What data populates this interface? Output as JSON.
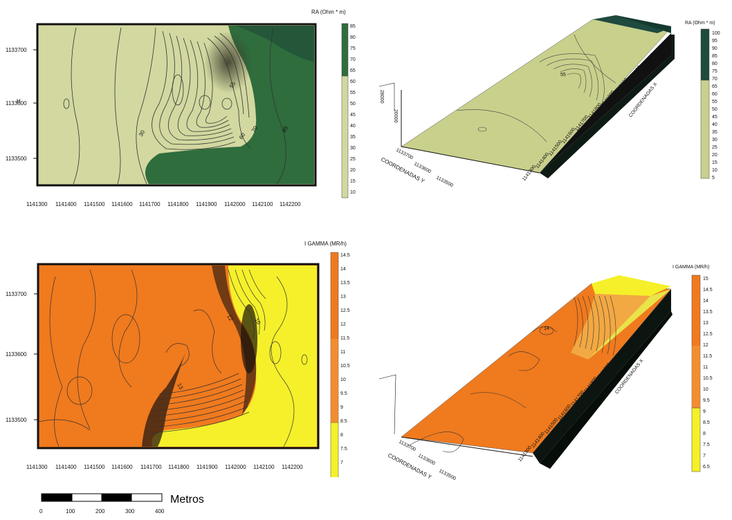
{
  "ra": {
    "title": "RA (Ohm * m)",
    "colors": {
      "low": "#d4d9a1",
      "high": "#2e6b3c",
      "surface3d": "#c9d08c",
      "high3d": "#1f4a3e"
    },
    "map2d": {
      "yticks": [
        "1133700",
        "1133600",
        "1133500"
      ],
      "xticks": [
        "1141300",
        "1141400",
        "1141500",
        "1141600",
        "1141700",
        "1141800",
        "1141900",
        "1142000",
        "1142100",
        "1142200"
      ],
      "side_label": "H",
      "contour_labels": [
        "30",
        "55",
        "60",
        "70",
        "85"
      ],
      "legend_ticks": [
        "85",
        "80",
        "75",
        "70",
        "65",
        "60",
        "55",
        "50",
        "45",
        "40",
        "35",
        "30",
        "25",
        "20",
        "15",
        "10"
      ]
    },
    "view3d": {
      "legend_ticks": [
        "100",
        "95",
        "90",
        "85",
        "80",
        "75",
        "70",
        "65",
        "60",
        "55",
        "50",
        "45",
        "40",
        "35",
        "30",
        "25",
        "20",
        "15",
        "10",
        "5"
      ],
      "y_axis_title": "COORDENADAS Y",
      "y_ticks": [
        "1133700",
        "1133600",
        "1133500"
      ],
      "x_axis_title": "COORDENADAS X",
      "x_ticks": [
        "1141300",
        "1141400",
        "1141500",
        "1141600",
        "1141700",
        "1141800",
        "1141900",
        "1142000",
        "1142100",
        "1142200"
      ],
      "z_ticks": [
        "28000",
        "26000"
      ],
      "peak_label": "55"
    }
  },
  "gamma": {
    "title": "I GAMMA (MR/h)",
    "colors": {
      "low": "#f5f02a",
      "high": "#f07a1e",
      "shadow": "#2a1a10",
      "dark3d": "#0c1510"
    },
    "map2d": {
      "yticks": [
        "1133700",
        "1133600",
        "1133500"
      ],
      "xticks": [
        "1141300",
        "1141400",
        "1141500",
        "1141600",
        "1141700",
        "1141800",
        "1141900",
        "1142000",
        "1142100",
        "1142200"
      ],
      "contour_labels": [
        "12",
        "10",
        "13"
      ],
      "legend_ticks": [
        "14.5",
        "14",
        "13.5",
        "13",
        "12.5",
        "12",
        "11.5",
        "11",
        "10.5",
        "10",
        "9.5",
        "9",
        "8.5",
        "8",
        "7.5",
        "7"
      ]
    },
    "view3d": {
      "title": "I GAMMA (MR/h)",
      "legend_ticks": [
        "15",
        "14.5",
        "14",
        "13.5",
        "13",
        "12.5",
        "12",
        "11.5",
        "11",
        "10.5",
        "10",
        "9.5",
        "9",
        "8.5",
        "8",
        "7.5",
        "7",
        "6.5"
      ],
      "y_axis_title": "COORDENADAS Y",
      "y_ticks": [
        "1133700",
        "1133600",
        "1133500"
      ],
      "x_axis_title": "COORDENADAS X",
      "x_ticks": [
        "1141300",
        "1141400",
        "1141500",
        "1141600",
        "1141700",
        "1141800",
        "1141900",
        "1142000",
        "1142100",
        "1142200"
      ],
      "peak_label": "14"
    }
  },
  "scale_bar": {
    "unit_label": "Metros",
    "ticks": [
      "0",
      "100",
      "200",
      "300",
      "400"
    ]
  }
}
